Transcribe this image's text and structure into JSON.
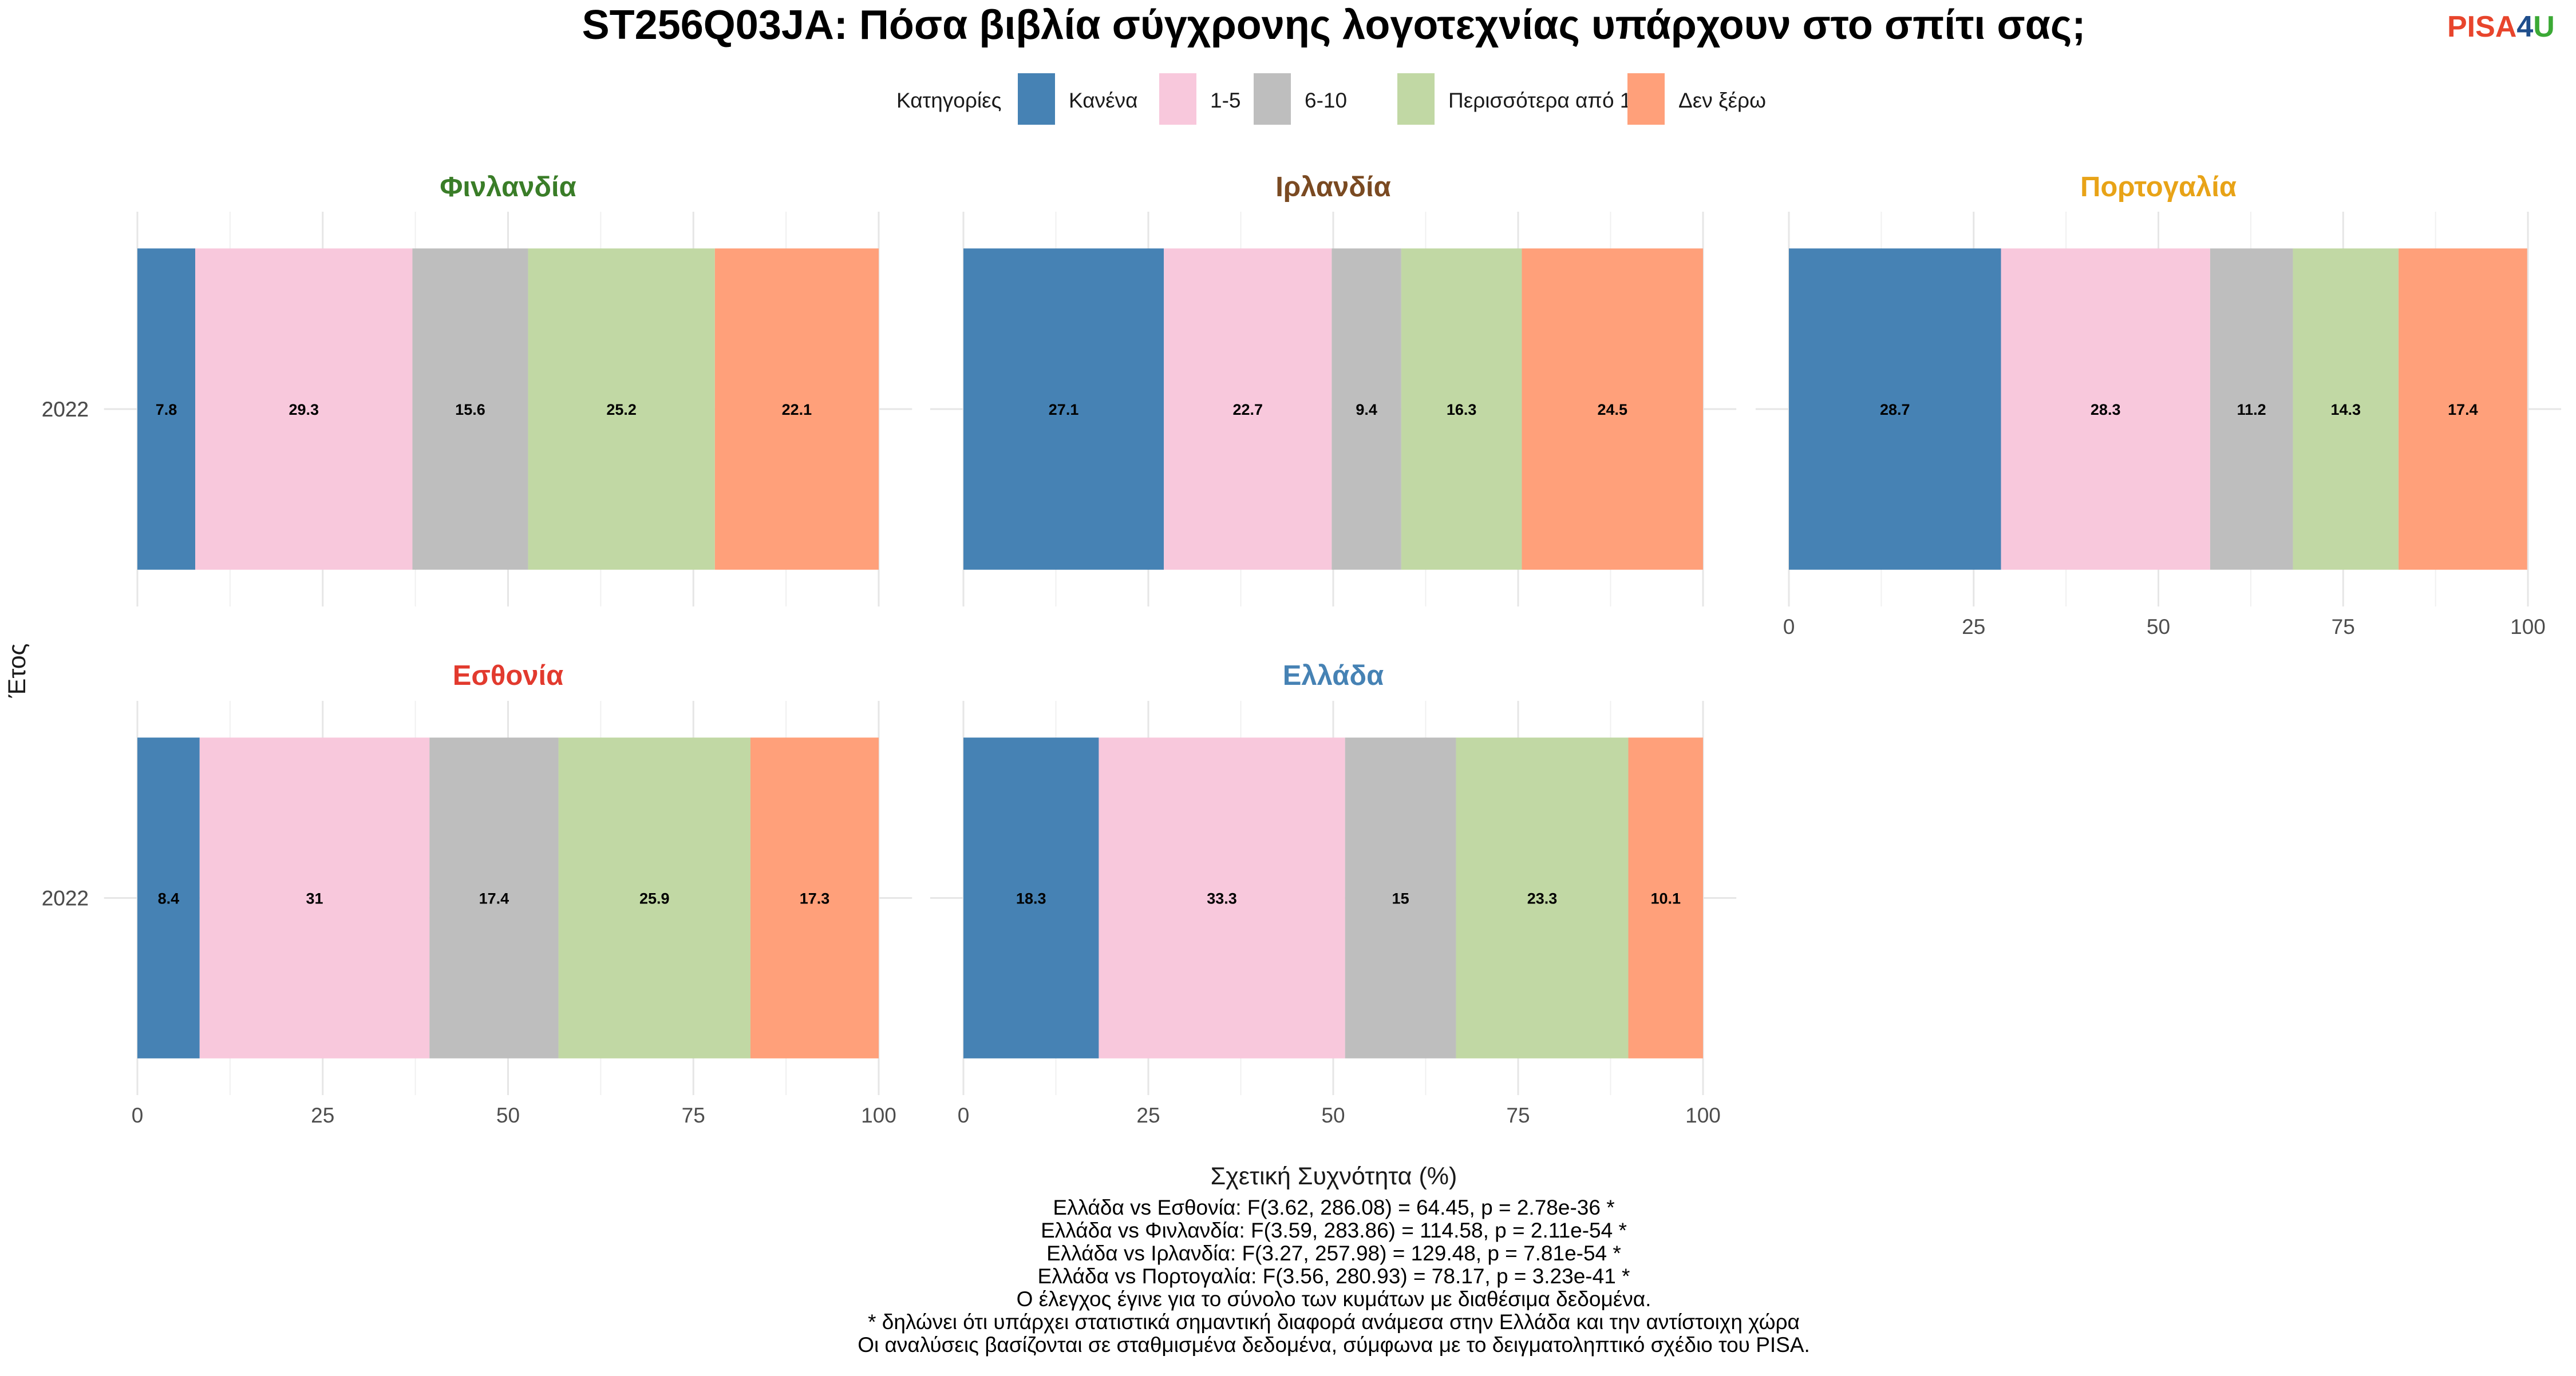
{
  "chart_data": {
    "type": "bar",
    "orientation": "horizontal",
    "stacked": true,
    "title": "ST256Q03JA: Πόσα βιβλία σύγχρονης λογοτεχνίας υπάρχουν στο σπίτι σας;",
    "xlabel": "Σχετική Συχνότητα (%)",
    "ylabel": "Έτος",
    "xlim": [
      0,
      100
    ],
    "xticks": [
      "0",
      "25",
      "50",
      "75",
      "100"
    ],
    "legend": {
      "title": "Κατηγορίες",
      "position": "top",
      "items": [
        {
          "label": "Κανένα",
          "color": "#4682B4"
        },
        {
          "label": "1-5",
          "color": "#F8C8DC"
        },
        {
          "label": "6-10",
          "color": "#BEBEBE"
        },
        {
          "label": "Περισσότερα από 10",
          "color": "#C1D8A4"
        },
        {
          "label": "Δεν ξέρω",
          "color": "#FFA07A"
        }
      ]
    },
    "facets": [
      {
        "name": "Φινλανδία",
        "color": "#3A7D28",
        "year": "2022",
        "values": [
          7.8,
          29.3,
          15.6,
          25.2,
          22.1
        ],
        "labels": [
          "7.8",
          "29.3",
          "15.6",
          "25.2",
          "22.1"
        ]
      },
      {
        "name": "Ιρλανδία",
        "color": "#7A4A22",
        "year": "2022",
        "values": [
          27.1,
          22.7,
          9.4,
          16.3,
          24.5
        ],
        "labels": [
          "27.1",
          "22.7",
          "9.4",
          "16.3",
          "24.5"
        ]
      },
      {
        "name": "Πορτογαλία",
        "color": "#E8A317",
        "year": "2022",
        "values": [
          28.7,
          28.3,
          11.2,
          14.3,
          17.4
        ],
        "labels": [
          "28.7",
          "28.3",
          "11.2",
          "14.3",
          "17.4"
        ]
      },
      {
        "name": "Εσθονία",
        "color": "#E23A2E",
        "year": "2022",
        "values": [
          8.4,
          31,
          17.4,
          25.9,
          17.3
        ],
        "labels": [
          "8.4",
          "31",
          "17.4",
          "25.9",
          "17.3"
        ]
      },
      {
        "name": "Ελλάδα",
        "color": "#4682B4",
        "year": "2022",
        "values": [
          18.3,
          33.3,
          15,
          23.3,
          10.1
        ],
        "labels": [
          "18.3",
          "33.3",
          "15",
          "23.3",
          "10.1"
        ]
      }
    ],
    "grid": true
  },
  "logo": {
    "part1": "PISA",
    "part2": "4",
    "part3": "U",
    "color1": "#E8452C",
    "color2": "#1F4E8C",
    "color3": "#3BA935"
  },
  "caption": [
    "Ελλάδα vs Εσθονία: F(3.62, 286.08) = 64.45, p = 2.78e-36 *",
    "Ελλάδα vs Φινλανδία: F(3.59, 283.86) = 114.58, p = 2.11e-54 *",
    "Ελλάδα vs Ιρλανδία: F(3.27, 257.98) = 129.48, p = 7.81e-54 *",
    "Ελλάδα vs Πορτογαλία: F(3.56, 280.93) = 78.17, p = 3.23e-41 *",
    "Ο έλεγχος έγινε για το σύνολο των κυμάτων με διαθέσιμα δεδομένα.",
    "* δηλώνει ότι υπάρχει στατιστικά σημαντική διαφορά ανάμεσα στην Ελλάδα και την αντίστοιχη χώρα",
    "Οι αναλύσεις βασίζονται σε σταθμισμένα δεδομένα, σύμφωνα με το δειγματοληπτικό σχέδιο του PISA."
  ]
}
